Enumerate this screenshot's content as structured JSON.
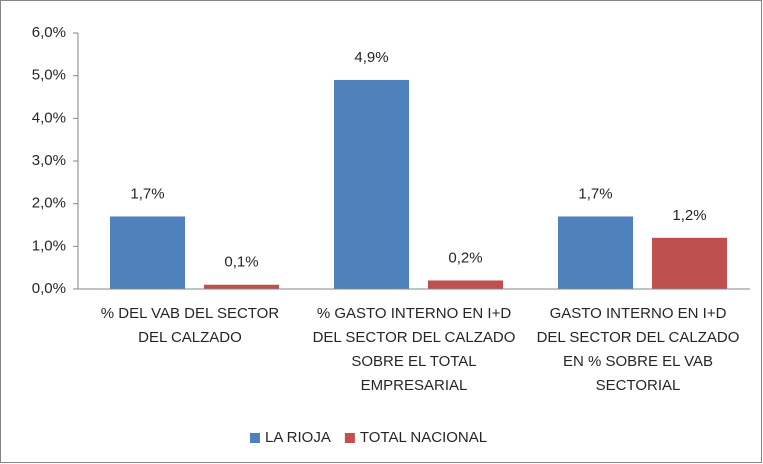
{
  "chart_data": {
    "type": "bar",
    "categories": [
      "% DEL VAB DEL SECTOR DEL CALZADO",
      "% GASTO INTERNO EN I+D DEL SECTOR DEL CALZADO SOBRE EL TOTAL EMPRESARIAL",
      "GASTO INTERNO EN I+D DEL SECTOR DEL CALZADO EN % SOBRE EL VAB SECTORIAL"
    ],
    "series": [
      {
        "name": "LA RIOJA",
        "color": "#4f81bd",
        "values": [
          1.7,
          4.9,
          1.7
        ],
        "value_labels": [
          "1,7%",
          "4,9%",
          "1,7%"
        ]
      },
      {
        "name": "TOTAL NACIONAL",
        "color": "#c0504d",
        "values": [
          0.1,
          0.2,
          1.2
        ],
        "value_labels": [
          "0,1%",
          "0,2%",
          "1,2%"
        ]
      }
    ],
    "ylim": [
      0,
      6
    ],
    "yticks": [
      {
        "value": 0,
        "label": "0,0%"
      },
      {
        "value": 1,
        "label": "1,0%"
      },
      {
        "value": 2,
        "label": "2,0%"
      },
      {
        "value": 3,
        "label": "3,0%"
      },
      {
        "value": 4,
        "label": "4,0%"
      },
      {
        "value": 5,
        "label": "5,0%"
      },
      {
        "value": 6,
        "label": "6,0%"
      }
    ],
    "legend": "bottom"
  }
}
